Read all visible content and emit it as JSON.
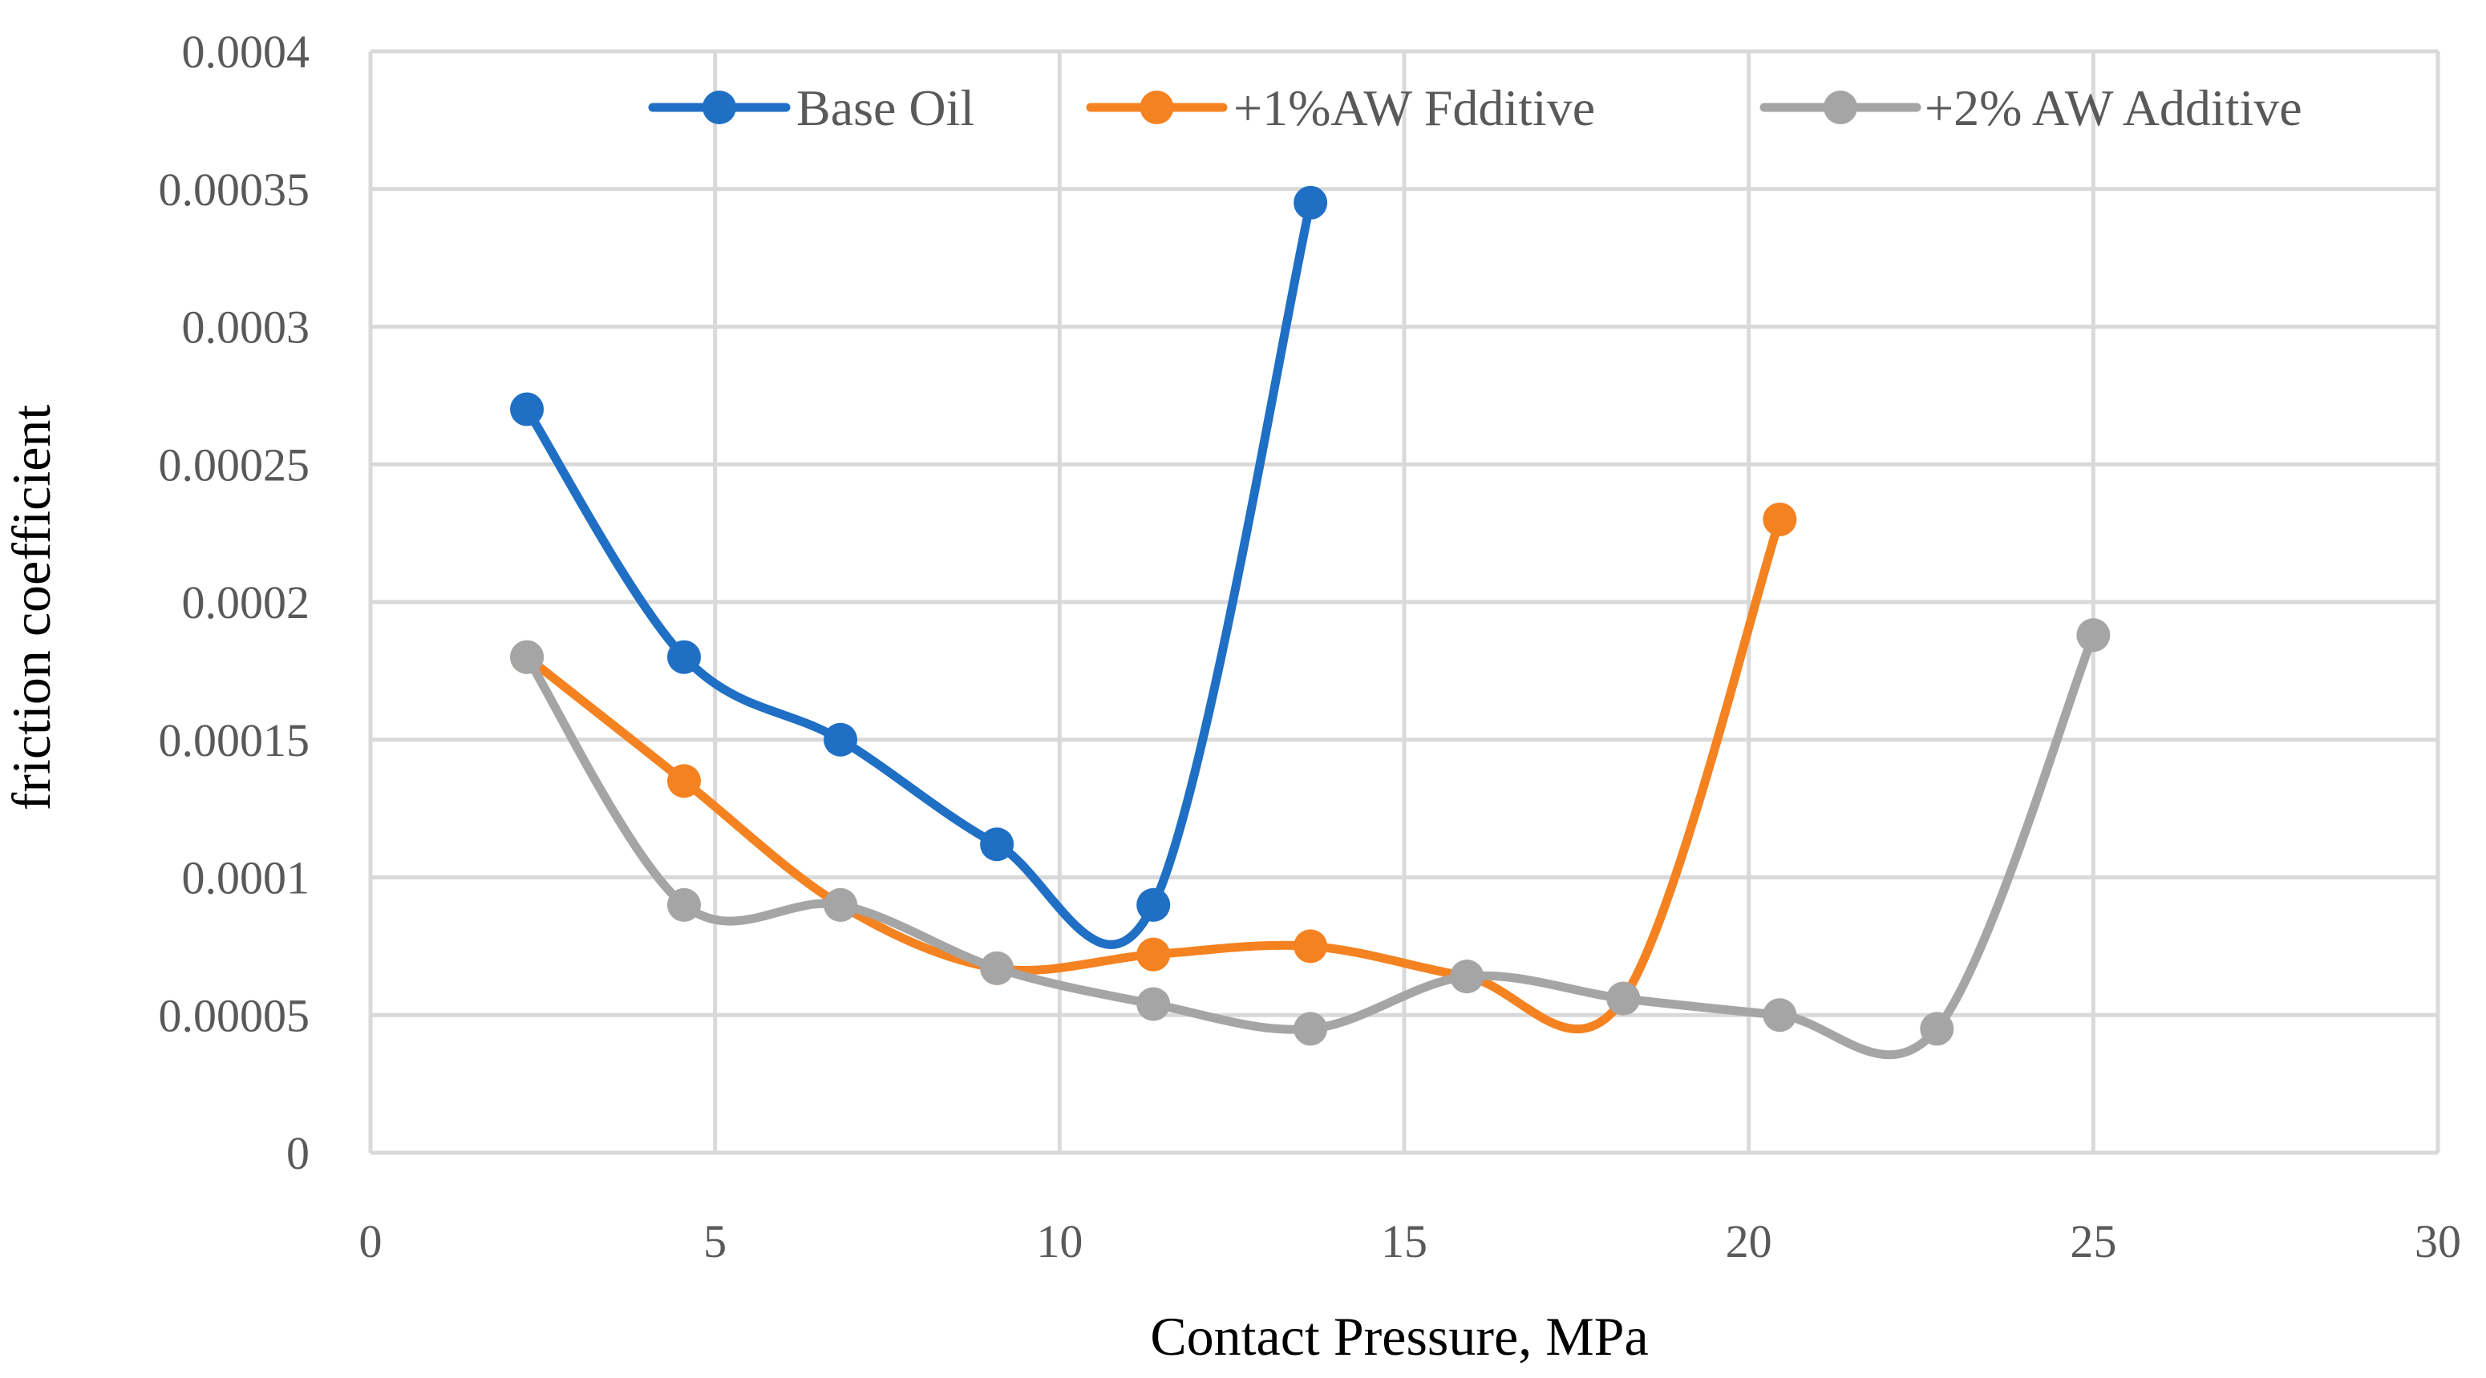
{
  "chart_data": {
    "type": "line",
    "smooth": true,
    "title": "",
    "xlabel": "Contact Pressure, MPa",
    "ylabel": "friction coefficient",
    "xlim": [
      0,
      30
    ],
    "ylim": [
      0,
      0.0004
    ],
    "x_ticks": [
      0,
      5,
      10,
      15,
      20,
      25,
      30
    ],
    "x_tick_labels": [
      "0",
      "5",
      "10",
      "15",
      "20",
      "25",
      "30"
    ],
    "y_ticks": [
      0,
      5e-05,
      0.0001,
      0.00015,
      0.0002,
      0.00025,
      0.0003,
      0.00035,
      0.0004
    ],
    "y_tick_labels": [
      "0",
      "0.00005",
      "0.0001",
      "0.00015",
      "0.0002",
      "0.00025",
      "0.0003",
      "0.00035",
      "0.0004"
    ],
    "grid": true,
    "legend_position": "top",
    "series": [
      {
        "name": "Base Oil",
        "color": "#1f6fc5",
        "x": [
          2.27,
          4.55,
          6.82,
          9.09,
          11.36,
          13.64
        ],
        "values": [
          0.00027,
          0.00018,
          0.00015,
          0.000112,
          9e-05,
          0.000345
        ]
      },
      {
        "name": "+1%AW Fdditive",
        "color": "#f58220",
        "x": [
          2.27,
          4.55,
          6.82,
          9.09,
          11.36,
          13.64,
          15.91,
          18.18,
          20.45
        ],
        "values": [
          0.00018,
          0.000135,
          9e-05,
          6.7e-05,
          7.2e-05,
          7.5e-05,
          6.4e-05,
          5.6e-05,
          0.00023
        ]
      },
      {
        "name": "+2% AW Additive",
        "color": "#a5a5a5",
        "x": [
          2.27,
          4.55,
          6.82,
          9.09,
          11.36,
          13.64,
          15.91,
          18.18,
          20.45,
          22.73,
          25.0
        ],
        "values": [
          0.00018,
          9e-05,
          9e-05,
          6.7e-05,
          5.4e-05,
          4.5e-05,
          6.4e-05,
          5.6e-05,
          5e-05,
          4.5e-05,
          0.000188
        ]
      }
    ]
  }
}
